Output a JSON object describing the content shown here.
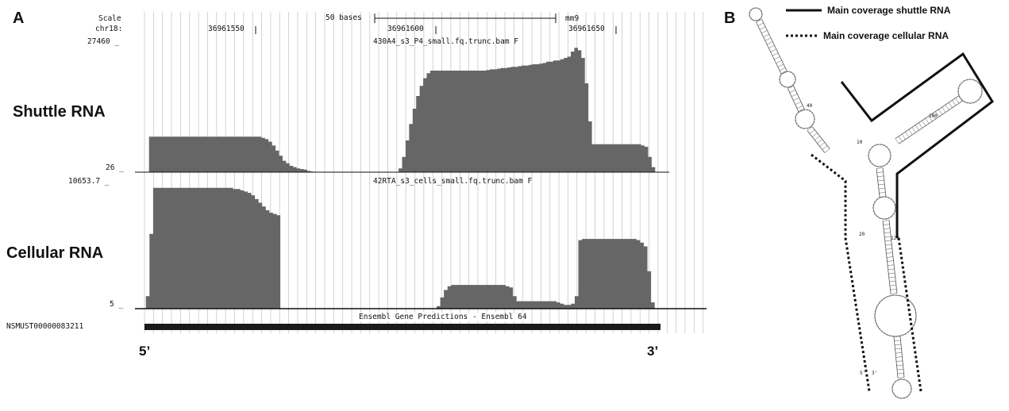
{
  "panelA": {
    "letter": "A",
    "scale_label": "Scale",
    "scale_bar_label": "50 bases",
    "assembly": "mm9",
    "chrom_label": "chr18:",
    "positions": [
      "36961550",
      "36961600",
      "36961650"
    ],
    "track1": {
      "title": "430A4_s3_P4_small.fq.trunc.bam F",
      "ymax_label": "27460 _",
      "ymin_label": "26 _",
      "row_label": "Shuttle RNA",
      "profile": [
        0,
        0,
        0,
        0,
        0.28,
        0.28,
        0.28,
        0.28,
        0.28,
        0.28,
        0.28,
        0.28,
        0.28,
        0.28,
        0.28,
        0.28,
        0.28,
        0.28,
        0.28,
        0.28,
        0.28,
        0.28,
        0.28,
        0.28,
        0.28,
        0.28,
        0.28,
        0.28,
        0.28,
        0.28,
        0.28,
        0.28,
        0.28,
        0.28,
        0.28,
        0.28,
        0.27,
        0.26,
        0.24,
        0.21,
        0.17,
        0.13,
        0.09,
        0.07,
        0.05,
        0.04,
        0.03,
        0.025,
        0.02,
        0.01,
        0.005,
        0,
        0,
        0,
        0,
        0,
        0,
        0,
        0,
        0,
        0,
        0,
        0,
        0,
        0,
        0,
        0,
        0,
        0,
        0,
        0,
        0,
        0,
        0,
        0,
        0.03,
        0.12,
        0.25,
        0.38,
        0.5,
        0.6,
        0.68,
        0.74,
        0.78,
        0.8,
        0.8,
        0.8,
        0.8,
        0.8,
        0.8,
        0.8,
        0.8,
        0.8,
        0.8,
        0.8,
        0.8,
        0.8,
        0.8,
        0.8,
        0.8,
        0.805,
        0.81,
        0.81,
        0.815,
        0.82,
        0.82,
        0.825,
        0.83,
        0.83,
        0.835,
        0.84,
        0.84,
        0.845,
        0.85,
        0.85,
        0.855,
        0.86,
        0.87,
        0.87,
        0.88,
        0.88,
        0.89,
        0.9,
        0.91,
        0.95,
        0.98,
        0.96,
        0.9,
        0.7,
        0.4,
        0.22,
        0.22,
        0.22,
        0.22,
        0.22,
        0.22,
        0.22,
        0.22,
        0.22,
        0.22,
        0.22,
        0.22,
        0.22,
        0.22,
        0.21,
        0.2,
        0.12,
        0.04,
        0,
        0,
        0,
        0
      ]
    },
    "track2": {
      "title": "42RTA_s3_cells_small.fq.trunc.bam F",
      "ymax_label": "10653.7 _",
      "ymin_label": "5 _",
      "row_label": "Cellular RNA",
      "profile": [
        0,
        0,
        0,
        0.1,
        0.6,
        0.97,
        0.97,
        0.97,
        0.97,
        0.97,
        0.97,
        0.97,
        0.97,
        0.97,
        0.97,
        0.97,
        0.97,
        0.97,
        0.97,
        0.97,
        0.97,
        0.97,
        0.97,
        0.97,
        0.97,
        0.97,
        0.97,
        0.96,
        0.96,
        0.95,
        0.94,
        0.93,
        0.91,
        0.88,
        0.85,
        0.82,
        0.79,
        0.77,
        0.76,
        0.75,
        0,
        0,
        0,
        0,
        0,
        0,
        0,
        0,
        0,
        0,
        0,
        0,
        0,
        0,
        0,
        0,
        0,
        0,
        0,
        0,
        0,
        0,
        0,
        0,
        0,
        0,
        0,
        0,
        0,
        0,
        0,
        0,
        0,
        0,
        0,
        0,
        0,
        0,
        0,
        0,
        0,
        0,
        0,
        0.02,
        0.09,
        0.15,
        0.18,
        0.19,
        0.19,
        0.19,
        0.19,
        0.19,
        0.19,
        0.19,
        0.19,
        0.19,
        0.19,
        0.19,
        0.19,
        0.19,
        0.19,
        0.19,
        0.18,
        0.17,
        0.1,
        0.06,
        0.06,
        0.06,
        0.06,
        0.06,
        0.06,
        0.06,
        0.06,
        0.06,
        0.06,
        0.06,
        0.05,
        0.04,
        0.03,
        0.03,
        0.04,
        0.1,
        0.55,
        0.56,
        0.56,
        0.56,
        0.56,
        0.56,
        0.56,
        0.56,
        0.56,
        0.56,
        0.56,
        0.56,
        0.56,
        0.56,
        0.56,
        0.56,
        0.55,
        0.53,
        0.5,
        0.3,
        0.05,
        0,
        0,
        0,
        0
      ]
    },
    "gene_track_title": "Ensembl Gene Predictions - Ensembl 64",
    "gene_id": "NSMUST00000083211",
    "five_prime": "5’",
    "three_prime": "3’",
    "colors": {
      "coverage": "#666666",
      "gridline": "#c8c8c8",
      "gene": "#1a1a1a"
    }
  },
  "panelB": {
    "letter": "B",
    "legend": [
      {
        "label": "Main coverage shuttle RNA",
        "style": "solid"
      },
      {
        "label": "Main coverage cellular RNA",
        "style": "dotted"
      }
    ],
    "structure_labels": [
      "10",
      "20",
      "40",
      "100",
      "120",
      "5'",
      "3'"
    ]
  }
}
